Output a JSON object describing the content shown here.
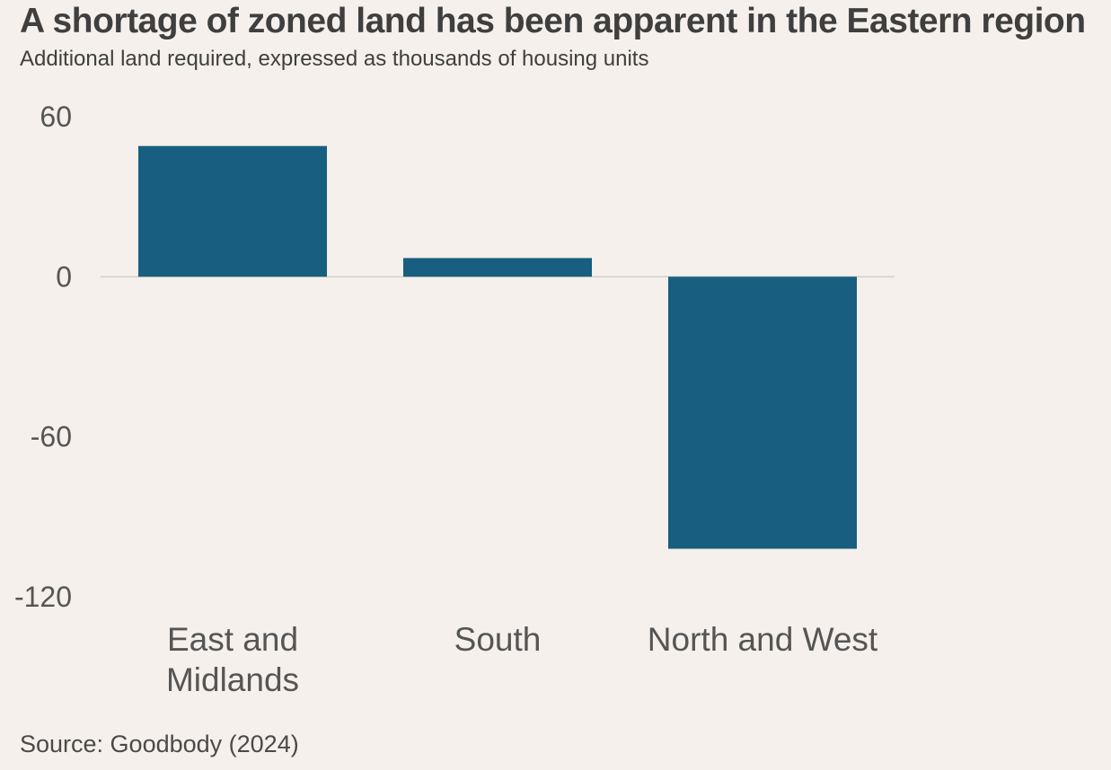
{
  "header": {
    "title": "A shortage of zoned land has been apparent in the Eastern region",
    "subtitle": "Additional land required, expressed as thousands of housing units"
  },
  "footer": {
    "source": "Source: Goodbody (2024)"
  },
  "colors": {
    "background": "#f5f0eb",
    "bar": "#185e80",
    "zero_line": "#cfcfcf",
    "text": "#3f3f3f"
  },
  "chart_data": {
    "type": "bar",
    "title": "A shortage of zoned land has been apparent in the Eastern region",
    "subtitle": "Additional land required, expressed as thousands of housing units",
    "categories": [
      "East and Midlands",
      "South",
      "North and West"
    ],
    "category_lines": [
      [
        "East and",
        "Midlands"
      ],
      [
        "South"
      ],
      [
        "North and West"
      ]
    ],
    "values": [
      49,
      7,
      -102
    ],
    "ylim": [
      -120,
      60
    ],
    "yticks": [
      60,
      0,
      -60,
      -120
    ],
    "ytick_labels": [
      "60",
      "0",
      "-60",
      "-120"
    ],
    "xlabel": "",
    "ylabel": "",
    "grid": false,
    "legend": "none"
  }
}
